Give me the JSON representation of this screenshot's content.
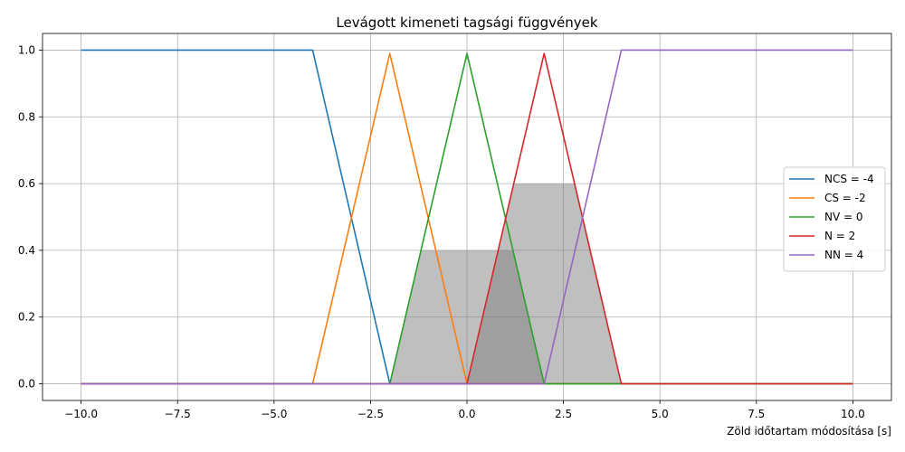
{
  "chart_data": {
    "type": "line",
    "title": "Levágott kimeneti tagsági függvények",
    "xlabel": "Zöld időtartam módosítása [s]",
    "ylabel": "",
    "xlim": [
      -11.0,
      11.0
    ],
    "ylim": [
      -0.05,
      1.05
    ],
    "xticks": [
      -10.0,
      -7.5,
      -5.0,
      -2.5,
      0.0,
      2.5,
      5.0,
      7.5,
      10.0
    ],
    "xtick_labels": [
      "−10.0",
      "−7.5",
      "−5.0",
      "−2.5",
      "0.0",
      "2.5",
      "5.0",
      "7.5",
      "10.0"
    ],
    "yticks": [
      0.0,
      0.2,
      0.4,
      0.6,
      0.8,
      1.0
    ],
    "ytick_labels": [
      "0.0",
      "0.2",
      "0.4",
      "0.6",
      "0.8",
      "1.0"
    ],
    "grid": true,
    "legend_position": "center-right",
    "series": [
      {
        "name": "NCS = -4",
        "color": "#1f77b4",
        "x": [
          -10,
          -4,
          -2,
          10
        ],
        "y": [
          1,
          1,
          0,
          0
        ]
      },
      {
        "name": "CS = -2",
        "color": "#ff7f0e",
        "x": [
          -10,
          -4,
          -2,
          0,
          10
        ],
        "y": [
          0,
          0,
          0.99,
          0,
          0
        ]
      },
      {
        "name": "NV = 0",
        "color": "#2ca02c",
        "x": [
          -10,
          -2,
          0,
          2,
          10
        ],
        "y": [
          0,
          0,
          0.99,
          0,
          0
        ]
      },
      {
        "name": "N = 2",
        "color": "#d62728",
        "x": [
          -10,
          0,
          2,
          4,
          10
        ],
        "y": [
          0,
          0,
          0.99,
          0,
          0
        ]
      },
      {
        "name": "NN = 4",
        "color": "#9467bd",
        "x": [
          -10,
          2,
          4,
          10
        ],
        "y": [
          0,
          0,
          1,
          1
        ]
      }
    ],
    "filled_areas": [
      {
        "name": "NV clipped at 0.4",
        "color": "#808080",
        "x": [
          -2,
          -1.2,
          1.2,
          2
        ],
        "y": [
          0,
          0.4,
          0.4,
          0
        ]
      },
      {
        "name": "N clipped at 0.6",
        "color": "#808080",
        "x": [
          0,
          1.2,
          2.8,
          4
        ],
        "y": [
          0,
          0.6,
          0.6,
          0
        ]
      }
    ]
  }
}
